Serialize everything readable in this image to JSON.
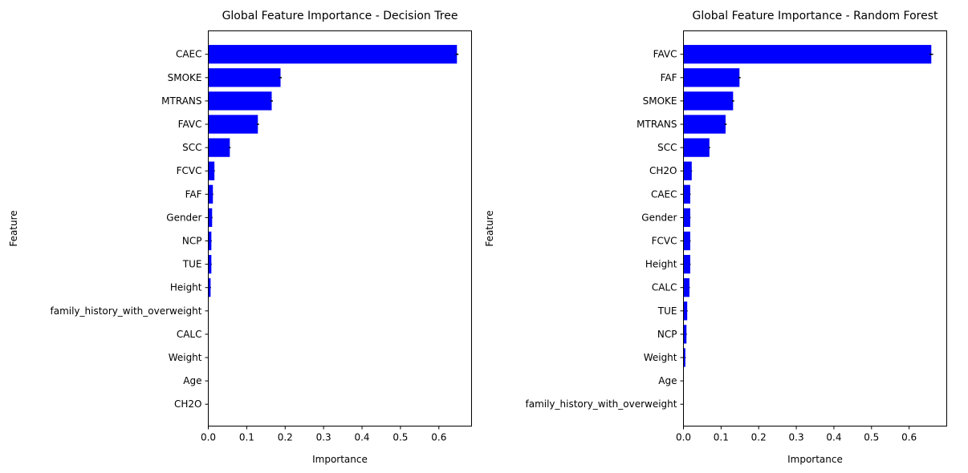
{
  "colors": {
    "bar": "#0000ff",
    "errorbar": "#000000",
    "axis": "#000000"
  },
  "chart_data": [
    {
      "type": "bar",
      "orientation": "horizontal",
      "title": "Global Feature Importance - Decision Tree",
      "xlabel": "Importance",
      "ylabel": "Feature",
      "xlim": [
        0,
        0.685
      ],
      "xticks": [
        0.0,
        0.1,
        0.2,
        0.3,
        0.4,
        0.5,
        0.6
      ],
      "xtick_labels": [
        "0.0",
        "0.1",
        "0.2",
        "0.3",
        "0.4",
        "0.5",
        "0.6"
      ],
      "grid": false,
      "categories": [
        "CAEC",
        "SMOKE",
        "MTRANS",
        "FAVC",
        "SCC",
        "FCVC",
        "FAF",
        "Gender",
        "NCP",
        "TUE",
        "Height",
        "family_history_with_overweight",
        "CALC",
        "Weight",
        "Age",
        "CH2O"
      ],
      "values": [
        0.647,
        0.188,
        0.165,
        0.129,
        0.056,
        0.016,
        0.012,
        0.01,
        0.008,
        0.008,
        0.006,
        0.0,
        0.0,
        0.0,
        0.0,
        0.0
      ],
      "errors": [
        0.004,
        0.003,
        0.003,
        0.003,
        0.002,
        0.001,
        0.001,
        0.001,
        0.001,
        0.001,
        0.001,
        0.0,
        0.0,
        0.0,
        0.0,
        0.0
      ]
    },
    {
      "type": "bar",
      "orientation": "horizontal",
      "title": "Global Feature Importance - Random Forest",
      "xlabel": "Importance",
      "ylabel": "Feature",
      "xlim": [
        0,
        0.7
      ],
      "xticks": [
        0.0,
        0.1,
        0.2,
        0.3,
        0.4,
        0.5,
        0.6
      ],
      "xtick_labels": [
        "0.0",
        "0.1",
        "0.2",
        "0.3",
        "0.4",
        "0.5",
        "0.6"
      ],
      "grid": false,
      "categories": [
        "FAVC",
        "FAF",
        "SMOKE",
        "MTRANS",
        "SCC",
        "CH2O",
        "CAEC",
        "Gender",
        "FCVC",
        "Height",
        "CALC",
        "TUE",
        "NCP",
        "Weight",
        "Age",
        "family_history_with_overweight"
      ],
      "values": [
        0.659,
        0.149,
        0.132,
        0.112,
        0.069,
        0.022,
        0.018,
        0.018,
        0.018,
        0.018,
        0.016,
        0.01,
        0.008,
        0.005,
        0.001,
        0.0
      ],
      "errors": [
        0.005,
        0.003,
        0.003,
        0.003,
        0.002,
        0.001,
        0.001,
        0.001,
        0.001,
        0.001,
        0.001,
        0.001,
        0.001,
        0.001,
        0.0,
        0.0
      ]
    }
  ]
}
